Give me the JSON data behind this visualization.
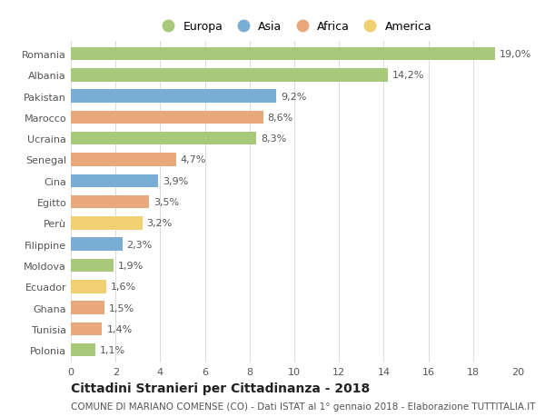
{
  "countries": [
    "Romania",
    "Albania",
    "Pakistan",
    "Marocco",
    "Ucraina",
    "Senegal",
    "Cina",
    "Egitto",
    "Perù",
    "Filippine",
    "Moldova",
    "Ecuador",
    "Ghana",
    "Tunisia",
    "Polonia"
  ],
  "values": [
    19.0,
    14.2,
    9.2,
    8.6,
    8.3,
    4.7,
    3.9,
    3.5,
    3.2,
    2.3,
    1.9,
    1.6,
    1.5,
    1.4,
    1.1
  ],
  "labels": [
    "19,0%",
    "14,2%",
    "9,2%",
    "8,6%",
    "8,3%",
    "4,7%",
    "3,9%",
    "3,5%",
    "3,2%",
    "2,3%",
    "1,9%",
    "1,6%",
    "1,5%",
    "1,4%",
    "1,1%"
  ],
  "continents": [
    "Europa",
    "Europa",
    "Asia",
    "Africa",
    "Europa",
    "Africa",
    "Asia",
    "Africa",
    "America",
    "Asia",
    "Europa",
    "America",
    "Africa",
    "Africa",
    "Europa"
  ],
  "colors": {
    "Europa": "#a8c87a",
    "Asia": "#7aadd4",
    "Africa": "#e8a87c",
    "America": "#f0d070"
  },
  "xlim": [
    0,
    20
  ],
  "xticks": [
    0,
    2,
    4,
    6,
    8,
    10,
    12,
    14,
    16,
    18,
    20
  ],
  "title": "Cittadini Stranieri per Cittadinanza - 2018",
  "subtitle": "COMUNE DI MARIANO COMENSE (CO) - Dati ISTAT al 1° gennaio 2018 - Elaborazione TUTTITALIA.IT",
  "background_color": "#ffffff",
  "grid_color": "#dddddd",
  "bar_height": 0.62,
  "title_fontsize": 10,
  "subtitle_fontsize": 7.5,
  "label_fontsize": 8,
  "tick_fontsize": 8,
  "legend_fontsize": 9,
  "legend_entries": [
    "Europa",
    "Asia",
    "Africa",
    "America"
  ],
  "legend_dot_colors": {
    "Europa": "#a8c87a",
    "Asia": "#7aadd4",
    "Africa": "#e8a87c",
    "America": "#f0d070"
  }
}
